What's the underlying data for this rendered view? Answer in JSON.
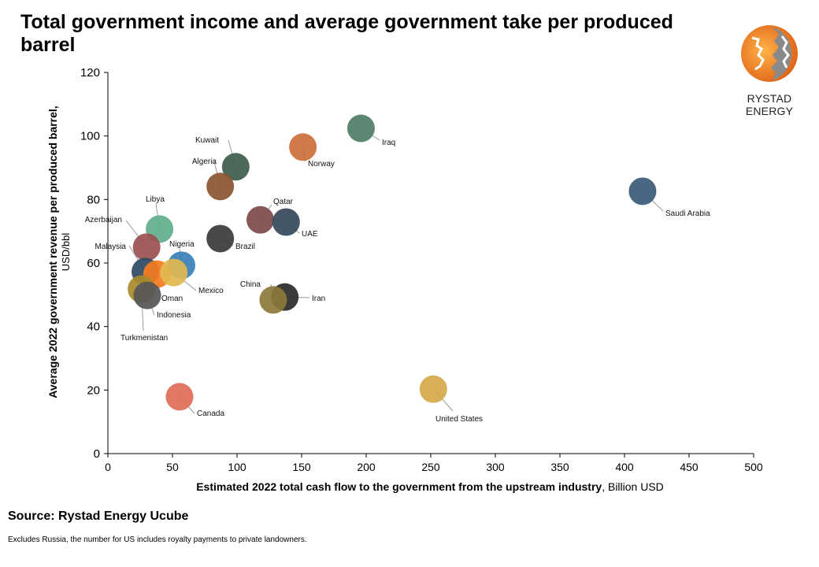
{
  "header": {
    "title": "Total government income and average government take per produced barrel"
  },
  "logo": {
    "text": "RYSTAD ENERGY",
    "colors": {
      "orange": "#f07f1e",
      "grey": "#8a8a8a"
    }
  },
  "footer": {
    "source": "Source: Rystad Energy Ucube",
    "note": "Excludes Russia, the number for US includes royalty payments to private landowners."
  },
  "chart_data": {
    "type": "scatter",
    "title": "Total government income and average government take per produced barrel",
    "xlabel_bold": "Estimated 2022 total cash flow to the government from the upstream industry",
    "xlabel_unit": ", Billion USD",
    "ylabel_bold": "Average 2022 government revenue per produced barrel,",
    "ylabel_unit": "USD/bbl",
    "xlim": [
      0,
      500
    ],
    "ylim": [
      0,
      120
    ],
    "xticks": [
      0,
      50,
      100,
      150,
      200,
      250,
      300,
      350,
      400,
      450,
      500
    ],
    "yticks": [
      0,
      20,
      40,
      60,
      80,
      100,
      120
    ],
    "grid": false,
    "legend": "none",
    "points": [
      {
        "label": "Iraq",
        "x": 196,
        "y": 102.4,
        "color": "#4e7d67"
      },
      {
        "label": "Norway",
        "x": 151,
        "y": 96.5,
        "color": "#cc6e3a"
      },
      {
        "label": "Kuwait",
        "x": 99,
        "y": 90.3,
        "color": "#3f5c4b"
      },
      {
        "label": "Algeria",
        "x": 87,
        "y": 84.1,
        "color": "#8b5530"
      },
      {
        "label": "Saudi Arabia",
        "x": 414,
        "y": 82.6,
        "color": "#3a5a78"
      },
      {
        "label": "Qatar",
        "x": 118,
        "y": 73.6,
        "color": "#7e4a4a"
      },
      {
        "label": "UAE",
        "x": 138,
        "y": 72.9,
        "color": "#35485a"
      },
      {
        "label": "Libya",
        "x": 40,
        "y": 70.7,
        "color": "#5fae8a"
      },
      {
        "label": "Brazil",
        "x": 87,
        "y": 67.7,
        "color": "#3a3a3a"
      },
      {
        "label": "Azerbaijan",
        "x": 30,
        "y": 65.0,
        "color": "#9a5050"
      },
      {
        "label": "Nigeria",
        "x": 57,
        "y": 59.3,
        "color": "#3a80b8"
      },
      {
        "label": "Malaysia",
        "x": 29,
        "y": 57.3,
        "color": "#2e4a63"
      },
      {
        "label": "Oman",
        "x": 38,
        "y": 56.5,
        "color": "#f47b20"
      },
      {
        "label": "Mexico",
        "x": 51,
        "y": 57.0,
        "color": "#e2b94f"
      },
      {
        "label": "Turkmenistan",
        "x": 26,
        "y": 51.8,
        "color": "#a88a2a"
      },
      {
        "label": "Indonesia",
        "x": 30.5,
        "y": 49.8,
        "color": "#555555"
      },
      {
        "label": "Iran",
        "x": 137,
        "y": 49.3,
        "color": "#2a2a2a"
      },
      {
        "label": "China",
        "x": 128,
        "y": 48.4,
        "color": "#8b7a3a"
      },
      {
        "label": "United States",
        "x": 252,
        "y": 20.3,
        "color": "#d4a94a"
      },
      {
        "label": "Canada",
        "x": 55.5,
        "y": 17.9,
        "color": "#e06b58"
      }
    ]
  }
}
